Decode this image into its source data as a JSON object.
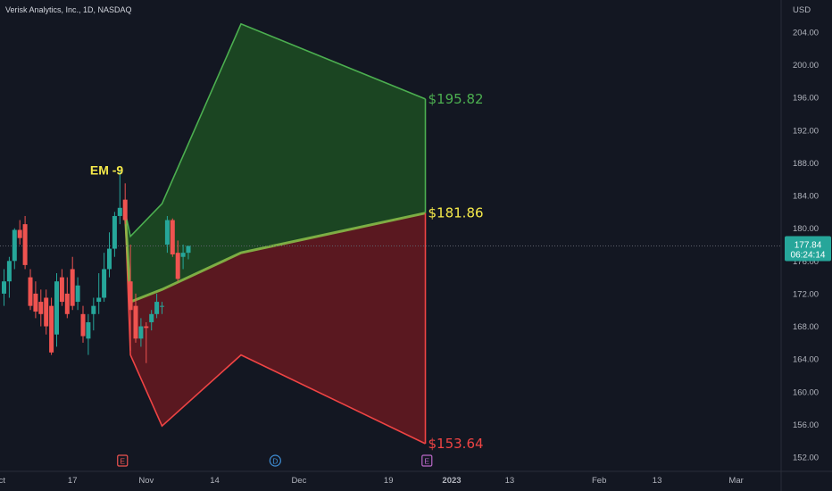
{
  "header": {
    "symbol": "Verisk Analytics, Inc., 1D, NASDAQ"
  },
  "colors": {
    "background": "#131722",
    "up": "#26a69a",
    "down": "#ef5350",
    "green_zone": "#1b4522",
    "red_zone": "#5a1820",
    "green_line": "#4caf50",
    "red_line": "#ef4444",
    "mid_line": "#8bc34a",
    "label_yellow": "#f5e94a",
    "price_tag": "#26a69a"
  },
  "chart_data": {
    "type": "candlestick",
    "currency_label": "USD",
    "y_ticks": [
      152,
      156,
      160,
      164,
      168,
      172,
      176,
      180,
      184,
      188,
      192,
      196,
      200,
      204
    ],
    "ylim": [
      151,
      207
    ],
    "x_tick_labels": [
      "Oct",
      "17",
      "Nov",
      "14",
      "Dec",
      "19",
      "2023",
      "13",
      "Feb",
      "13",
      "Mar"
    ],
    "x_tick_bars": [
      -1,
      13,
      27,
      40,
      56,
      73,
      85,
      96,
      113,
      124,
      139
    ],
    "bars_visible": [
      0,
      141
    ],
    "candles": [
      {
        "o": 172.0,
        "h": 175.0,
        "l": 170.5,
        "c": 173.5
      },
      {
        "o": 173.5,
        "h": 176.5,
        "l": 171.5,
        "c": 176.0
      },
      {
        "o": 176.0,
        "h": 180.0,
        "l": 175.0,
        "c": 179.8
      },
      {
        "o": 179.8,
        "h": 181.0,
        "l": 178.0,
        "c": 178.8
      },
      {
        "o": 180.5,
        "h": 181.5,
        "l": 175.0,
        "c": 175.5
      },
      {
        "o": 174.0,
        "h": 175.0,
        "l": 170.0,
        "c": 170.5
      },
      {
        "o": 172.0,
        "h": 173.5,
        "l": 169.0,
        "c": 169.8
      },
      {
        "o": 171.0,
        "h": 172.5,
        "l": 168.0,
        "c": 169.5
      },
      {
        "o": 171.5,
        "h": 172.5,
        "l": 167.0,
        "c": 168.0
      },
      {
        "o": 170.5,
        "h": 171.5,
        "l": 164.5,
        "c": 164.8
      },
      {
        "o": 167.0,
        "h": 174.5,
        "l": 165.5,
        "c": 173.5
      },
      {
        "o": 174.0,
        "h": 175.0,
        "l": 170.5,
        "c": 171.0
      },
      {
        "o": 172.0,
        "h": 174.0,
        "l": 169.0,
        "c": 169.5
      },
      {
        "o": 175.0,
        "h": 176.5,
        "l": 170.0,
        "c": 170.5
      },
      {
        "o": 171.0,
        "h": 174.0,
        "l": 170.0,
        "c": 173.0
      },
      {
        "o": 169.5,
        "h": 170.5,
        "l": 166.0,
        "c": 166.8
      },
      {
        "o": 166.5,
        "h": 169.5,
        "l": 164.5,
        "c": 168.5
      },
      {
        "o": 169.5,
        "h": 171.5,
        "l": 167.5,
        "c": 170.5
      },
      {
        "o": 171.0,
        "h": 174.5,
        "l": 169.5,
        "c": 171.5
      },
      {
        "o": 171.5,
        "h": 177.0,
        "l": 171.0,
        "c": 175.0
      },
      {
        "o": 175.0,
        "h": 179.5,
        "l": 174.0,
        "c": 177.5
      },
      {
        "o": 177.5,
        "h": 182.0,
        "l": 176.5,
        "c": 181.5
      },
      {
        "o": 181.5,
        "h": 187.0,
        "l": 180.5,
        "c": 182.5
      },
      {
        "o": 183.5,
        "h": 185.5,
        "l": 180.5,
        "c": 181.0
      },
      {
        "o": 173.5,
        "h": 178.0,
        "l": 165.0,
        "c": 170.0
      },
      {
        "o": 170.5,
        "h": 172.0,
        "l": 166.0,
        "c": 166.5
      },
      {
        "o": 166.5,
        "h": 169.0,
        "l": 165.5,
        "c": 168.0
      },
      {
        "o": 168.0,
        "h": 168.5,
        "l": 163.5,
        "c": 167.8
      },
      {
        "o": 168.5,
        "h": 170.0,
        "l": 167.5,
        "c": 169.5
      },
      {
        "o": 169.5,
        "h": 172.0,
        "l": 169.0,
        "c": 171.0
      },
      {
        "o": 170.5,
        "h": 171.0,
        "l": 169.5,
        "c": 170.5
      },
      {
        "o": 178.0,
        "h": 181.5,
        "l": 177.0,
        "c": 181.0
      },
      {
        "o": 181.0,
        "h": 181.2,
        "l": 176.5,
        "c": 176.8
      },
      {
        "o": 177.0,
        "h": 178.5,
        "l": 173.5,
        "c": 173.8
      },
      {
        "o": 176.5,
        "h": 178.0,
        "l": 175.0,
        "c": 177.0
      },
      {
        "o": 177.0,
        "h": 177.8,
        "l": 176.2,
        "c": 177.84
      }
    ],
    "zones": [
      {
        "name": "upper",
        "points": [
          [
            23,
            182.0
          ],
          [
            24,
            179.0
          ],
          [
            30,
            183.0
          ],
          [
            45,
            205.0
          ],
          [
            80,
            195.82
          ]
        ]
      },
      {
        "name": "middle",
        "points": [
          [
            23,
            182.0
          ],
          [
            24,
            171.0
          ],
          [
            30,
            172.5
          ],
          [
            45,
            177.0
          ],
          [
            80,
            181.86
          ]
        ]
      },
      {
        "name": "lower",
        "points": [
          [
            23,
            182.0
          ],
          [
            24,
            164.5
          ],
          [
            30,
            155.8
          ],
          [
            45,
            164.5
          ],
          [
            80,
            153.64
          ]
        ]
      }
    ],
    "zone_end_bar": 80,
    "annotations": {
      "em_label": "EM -9",
      "em_bar": 19.5,
      "em_value": 186.6,
      "upper_target": "$195.82",
      "mid_target": "$181.86",
      "lower_target": "$153.64"
    },
    "last_price": {
      "value": 177.84,
      "label": "177.84",
      "countdown": "06:24:14"
    },
    "events": [
      {
        "letter": "E",
        "bar": 22.5,
        "type": "earnings"
      },
      {
        "letter": "D",
        "bar": 51.5,
        "type": "dividend"
      },
      {
        "letter": "E",
        "bar": 80.3,
        "type": "earnings-future"
      }
    ]
  }
}
